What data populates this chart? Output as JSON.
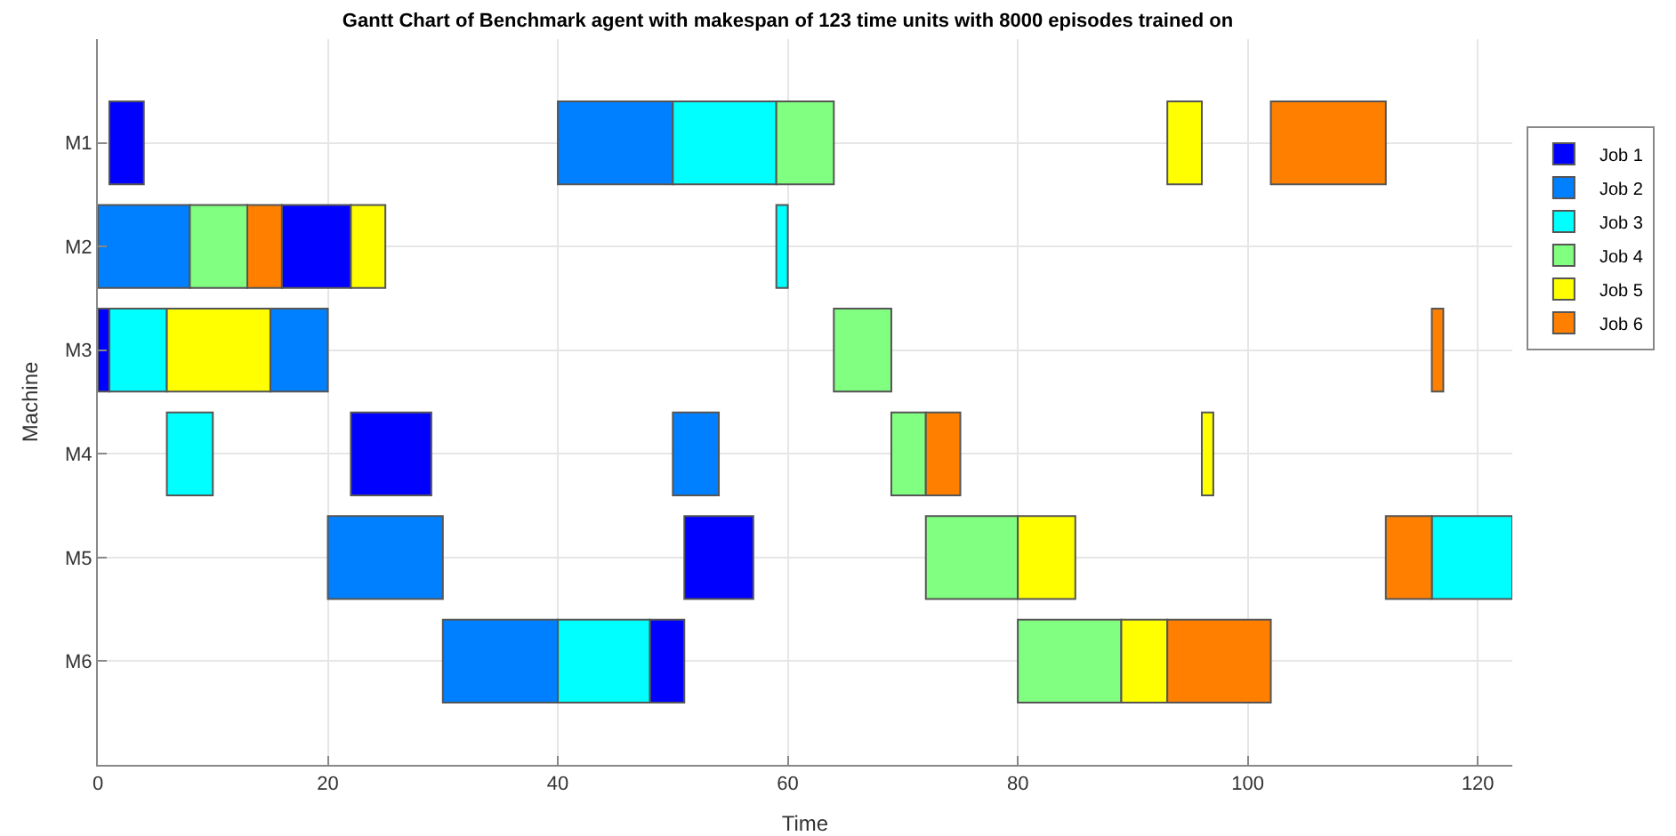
{
  "chart_data": {
    "type": "bar",
    "orientation": "horizontal",
    "title": "Gantt Chart of Benchmark agent with makespan of 123 time units with 8000 episodes trained on",
    "xlabel": "Time",
    "ylabel": "Machine",
    "categories": [
      "M1",
      "M2",
      "M3",
      "M4",
      "M5",
      "M6"
    ],
    "series": [
      {
        "name": "Job 1",
        "color": "#0000ff",
        "base": [
          1,
          16,
          0,
          22,
          51,
          48
        ],
        "values": [
          3,
          6,
          1,
          7,
          6,
          3
        ]
      },
      {
        "name": "Job 2",
        "color": "#0080ff",
        "base": [
          40,
          0,
          15,
          50,
          20,
          30
        ],
        "values": [
          10,
          8,
          5,
          4,
          10,
          10
        ]
      },
      {
        "name": "Job 3",
        "color": "#00ffff",
        "base": [
          50,
          59,
          1,
          6,
          116,
          40
        ],
        "values": [
          9,
          1,
          5,
          4,
          7,
          8
        ]
      },
      {
        "name": "Job 4",
        "color": "#80ff80",
        "base": [
          59,
          8,
          64,
          69,
          72,
          80
        ],
        "values": [
          5,
          5,
          5,
          3,
          8,
          9
        ]
      },
      {
        "name": "Job 5",
        "color": "#ffff00",
        "base": [
          93,
          22,
          6,
          96,
          80,
          89
        ],
        "values": [
          3,
          3,
          9,
          1,
          5,
          4
        ]
      },
      {
        "name": "Job 6",
        "color": "#ff8000",
        "base": [
          102,
          13,
          116,
          72,
          112,
          93
        ],
        "values": [
          10,
          3,
          1,
          3,
          4,
          9
        ]
      }
    ],
    "xlim": [
      0,
      123
    ],
    "xticks": [
      0,
      20,
      40,
      60,
      80,
      100,
      120
    ],
    "grid": true,
    "legend": "top right"
  }
}
